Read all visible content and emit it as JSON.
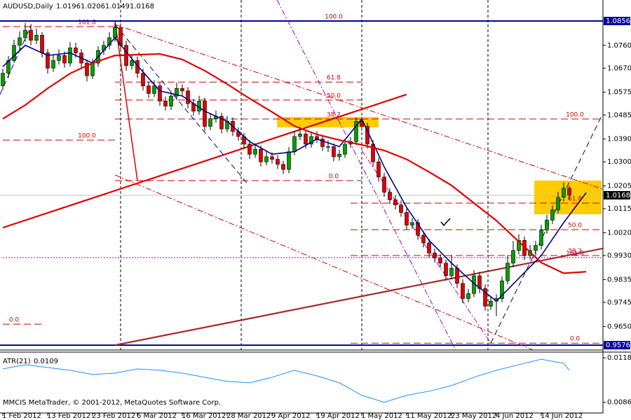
{
  "chart_data": {
    "type": "candlestick",
    "title": "AUDUSD,Daily",
    "footer": "MMCIS MetaTrader, © 2001-2012, MetaQuotes Software Corp.",
    "bull_color": "#00a000",
    "bear_color": "#e00000",
    "ylim": [
      0.9557,
      1.0939
    ],
    "yticks": [
      {
        "value": 1.076,
        "label": "1.0760"
      },
      {
        "value": 1.067,
        "label": "1.0670"
      },
      1.0575,
      1.0485,
      {
        "value": 1.039,
        "label": "1.0390"
      },
      {
        "value": 1.03,
        "label": "1.0300"
      },
      1.0205,
      1.0115,
      {
        "value": 1.002,
        "label": "1.0020"
      },
      {
        "value": 0.993,
        "label": "0.9930"
      },
      0.9835,
      0.9745,
      {
        "value": 0.965,
        "label": "0.9650"
      }
    ],
    "xticks": [
      {
        "value": 0,
        "label": "1 Feb 2012"
      },
      {
        "value": 8,
        "label": "13 Feb 2012"
      },
      {
        "value": 16,
        "label": "23 Feb 2012"
      },
      {
        "value": 24,
        "label": "6 Mar 2012"
      },
      {
        "value": 32,
        "label": "16 Mar 2012"
      },
      {
        "value": 40,
        "label": "28 Mar 2012"
      },
      {
        "value": 48,
        "label": "9 Apr 2012"
      },
      {
        "value": 56,
        "label": "19 Apr 2012"
      },
      {
        "value": 64,
        "label": "1 May 2012"
      },
      {
        "value": 72,
        "label": "11 May 2012"
      },
      {
        "value": 80,
        "label": "23 May 2012"
      },
      {
        "value": 88,
        "label": "4 Jun 2012"
      },
      {
        "value": 96,
        "label": "14 Jun 2012"
      }
    ],
    "grid": false,
    "ohlc": [
      [
        1.06,
        1.0668,
        1.0585,
        1.065
      ],
      [
        1.065,
        1.0718,
        1.0632,
        1.07
      ],
      [
        1.07,
        1.0782,
        1.069,
        1.076
      ],
      [
        1.076,
        1.0815,
        1.0741,
        1.079
      ],
      [
        1.079,
        1.0848,
        1.0775,
        1.082
      ],
      [
        1.082,
        1.0842,
        1.076,
        1.078
      ],
      [
        1.078,
        1.0826,
        1.0765,
        1.08
      ],
      [
        1.08,
        1.0812,
        1.0712,
        1.073
      ],
      [
        1.073,
        1.0745,
        1.0648,
        1.067
      ],
      [
        1.067,
        1.0721,
        1.0655,
        1.07
      ],
      [
        1.07,
        1.0744,
        1.0684,
        1.072
      ],
      [
        1.072,
        1.0736,
        1.0672,
        1.069
      ],
      [
        1.069,
        1.0772,
        1.0677,
        1.075
      ],
      [
        1.075,
        1.077,
        1.0711,
        1.073
      ],
      [
        1.073,
        1.0745,
        1.0672,
        1.069
      ],
      [
        1.069,
        1.0703,
        1.0618,
        1.064
      ],
      [
        1.064,
        1.0708,
        1.0627,
        1.069
      ],
      [
        1.069,
        1.0757,
        1.0676,
        1.074
      ],
      [
        1.074,
        1.0778,
        1.0722,
        1.076
      ],
      [
        1.076,
        1.0812,
        1.0745,
        1.079
      ],
      [
        1.079,
        1.0856,
        1.0774,
        1.083
      ],
      [
        1.083,
        1.0846,
        1.0741,
        1.076
      ],
      [
        1.076,
        1.0778,
        1.066,
        1.068
      ],
      [
        1.068,
        1.0722,
        1.0664,
        1.07
      ],
      [
        1.07,
        1.0716,
        1.0631,
        1.065
      ],
      [
        1.065,
        1.0668,
        1.0582,
        1.06
      ],
      [
        1.06,
        1.0617,
        1.0552,
        1.057
      ],
      [
        1.057,
        1.0622,
        1.0556,
        1.06
      ],
      [
        1.06,
        1.0614,
        1.0521,
        1.054
      ],
      [
        1.054,
        1.0558,
        1.0503,
        1.052
      ],
      [
        1.052,
        1.0578,
        1.0505,
        1.056
      ],
      [
        1.056,
        1.0612,
        1.0544,
        1.059
      ],
      [
        1.059,
        1.0606,
        1.0562,
        1.058
      ],
      [
        1.058,
        1.0595,
        1.0511,
        1.053
      ],
      [
        1.053,
        1.0547,
        1.0482,
        1.05
      ],
      [
        1.05,
        1.0561,
        1.0486,
        1.054
      ],
      [
        1.054,
        1.0553,
        1.0421,
        1.044
      ],
      [
        1.044,
        1.0492,
        1.0425,
        1.047
      ],
      [
        1.047,
        1.0502,
        1.0455,
        1.048
      ],
      [
        1.048,
        1.0494,
        1.0412,
        1.043
      ],
      [
        1.043,
        1.0481,
        1.0416,
        1.046
      ],
      [
        1.046,
        1.0475,
        1.0402,
        1.042
      ],
      [
        1.042,
        1.0436,
        1.0383,
        1.04
      ],
      [
        1.04,
        1.0414,
        1.0352,
        1.037
      ],
      [
        1.037,
        1.0386,
        1.0311,
        1.033
      ],
      [
        1.033,
        1.0372,
        1.0316,
        1.035
      ],
      [
        1.035,
        1.0364,
        1.0282,
        1.03
      ],
      [
        1.03,
        1.0341,
        1.0286,
        1.032
      ],
      [
        1.032,
        1.0338,
        1.0293,
        1.031
      ],
      [
        1.031,
        1.0326,
        1.0272,
        1.029
      ],
      [
        1.029,
        1.0304,
        1.0252,
        1.027
      ],
      [
        1.027,
        1.0358,
        1.0255,
        1.034
      ],
      [
        1.034,
        1.0422,
        1.0326,
        1.04
      ],
      [
        1.04,
        1.0438,
        1.0385,
        1.041
      ],
      [
        1.041,
        1.0425,
        1.0352,
        1.037
      ],
      [
        1.037,
        1.0418,
        1.0356,
        1.04
      ],
      [
        1.04,
        1.0421,
        1.0374,
        1.039
      ],
      [
        1.039,
        1.0405,
        1.0343,
        1.036
      ],
      [
        1.036,
        1.0384,
        1.0339,
        1.036
      ],
      [
        1.036,
        1.0372,
        1.0302,
        1.032
      ],
      [
        1.032,
        1.0348,
        1.0305,
        1.033
      ],
      [
        1.033,
        1.0391,
        1.0316,
        1.037
      ],
      [
        1.037,
        1.0398,
        1.0356,
        1.038
      ],
      [
        1.038,
        1.0475,
        1.0366,
        1.046
      ],
      [
        1.046,
        1.0476,
        1.0423,
        1.044
      ],
      [
        1.044,
        1.0455,
        1.0352,
        1.037
      ],
      [
        1.037,
        1.0386,
        1.0281,
        1.03
      ],
      [
        1.03,
        1.0316,
        1.0222,
        1.024
      ],
      [
        1.024,
        1.0257,
        1.0162,
        1.018
      ],
      [
        1.018,
        1.0196,
        1.0133,
        1.015
      ],
      [
        1.015,
        1.0168,
        1.0112,
        1.013
      ],
      [
        1.013,
        1.0147,
        1.0083,
        1.01
      ],
      [
        1.01,
        1.0116,
        1.0032,
        1.005
      ],
      [
        1.005,
        1.0078,
        1.0036,
        1.006
      ],
      [
        1.006,
        1.0074,
        0.9992,
        1.001
      ],
      [
        1.001,
        1.0027,
        0.9962,
        0.998
      ],
      [
        0.998,
        0.9996,
        0.9921,
        0.994
      ],
      [
        0.994,
        0.9957,
        0.9903,
        0.992
      ],
      [
        0.992,
        0.9936,
        0.9882,
        0.99
      ],
      [
        0.99,
        0.9914,
        0.9831,
        0.985
      ],
      [
        0.985,
        0.9932,
        0.9836,
        0.988
      ],
      [
        0.988,
        0.9895,
        0.9802,
        0.982
      ],
      [
        0.982,
        0.9836,
        0.9742,
        0.976
      ],
      [
        0.976,
        0.9798,
        0.9745,
        0.978
      ],
      [
        0.978,
        0.9872,
        0.9766,
        0.985
      ],
      [
        0.985,
        0.9865,
        0.9782,
        0.98
      ],
      [
        0.98,
        0.9816,
        0.9712,
        0.973
      ],
      [
        0.973,
        0.9768,
        0.9715,
        0.975
      ],
      [
        0.975,
        0.9777,
        0.9691,
        0.976
      ],
      [
        0.976,
        0.9848,
        0.9745,
        0.983
      ],
      [
        0.983,
        0.9932,
        0.9816,
        0.99
      ],
      [
        0.99,
        0.9988,
        0.9884,
        0.995
      ],
      [
        0.995,
        1.0014,
        0.9935,
        0.999
      ],
      [
        0.999,
        1.0005,
        0.9912,
        0.993
      ],
      [
        0.993,
        0.9972,
        0.9915,
        0.995
      ],
      [
        0.995,
        0.9988,
        0.9933,
        0.997
      ],
      [
        0.997,
        1.0052,
        0.9954,
        1.003
      ],
      [
        1.003,
        1.0091,
        1.0016,
        1.007
      ],
      [
        1.007,
        1.0128,
        1.0055,
        1.011
      ],
      [
        1.011,
        1.0182,
        1.0096,
        1.016
      ],
      [
        1.016,
        1.0218,
        1.0144,
        1.0196
      ],
      [
        1.0196,
        1.0206,
        1.0149,
        1.0168
      ]
    ],
    "ma": [
      {
        "color": "#000080",
        "width": 1.6,
        "x": [
          0,
          4,
          8,
          12,
          16,
          20,
          24,
          28,
          32,
          36,
          40,
          44,
          48,
          52,
          56,
          60,
          64,
          68,
          72,
          76,
          80,
          84,
          88,
          92,
          96,
          100,
          104
        ],
        "values": [
          1.0676,
          1.076,
          1.072,
          1.073,
          1.069,
          1.079,
          1.068,
          1.058,
          1.056,
          1.05,
          1.046,
          1.038,
          1.033,
          1.034,
          1.039,
          1.036,
          1.0469,
          1.028,
          1.012,
          0.999,
          0.99,
          0.982,
          0.975,
          0.984,
          0.993,
          1.006,
          1.0178
        ]
      },
      {
        "color": "#e00000",
        "width": 2.2,
        "x": [
          0,
          4,
          8,
          12,
          16,
          20,
          24,
          28,
          32,
          36,
          40,
          44,
          48,
          52,
          56,
          60,
          64,
          68,
          72,
          76,
          80,
          84,
          88,
          92,
          96,
          100,
          104
        ],
        "values": [
          1.047,
          1.0524,
          1.059,
          1.0649,
          1.069,
          1.072,
          1.0723,
          1.0726,
          1.0704,
          1.066,
          1.0607,
          1.055,
          1.0497,
          1.0441,
          1.0408,
          1.0386,
          1.0367,
          1.0345,
          1.031,
          1.026,
          1.0207,
          1.0137,
          1.0068,
          0.9985,
          0.9902,
          0.986,
          0.9866
        ]
      }
    ],
    "hlines": [
      {
        "price": 1.0856,
        "color": "#0000a0"
      },
      {
        "price": 0.9576,
        "color": "#0000a0"
      }
    ],
    "vlines": [
      21,
      42.5,
      64,
      86.5
    ],
    "boxes": [
      {
        "from": 48.9,
        "to": 67,
        "top": 1.0477,
        "bottom": 1.0436,
        "color": "#ffcc00"
      },
      {
        "from": 94.75,
        "to": 106.75,
        "top": 1.0226,
        "bottom": 1.0093,
        "color": "#ffcc00"
      }
    ],
    "fibs": [
      {
        "label": "161.8",
        "price": 1.0834,
        "from": 0,
        "to": 20,
        "color": "#d00000"
      },
      {
        "label": "100.0",
        "price": 1.0856,
        "from": 20,
        "to": 64,
        "color": "#d00000"
      },
      {
        "label": "61.8",
        "price": 1.0615,
        "from": 20,
        "to": 64,
        "color": "#d00000"
      },
      {
        "label": "50.0",
        "price": 1.0544,
        "from": 20,
        "to": 64,
        "color": "#d00000"
      },
      {
        "label": "38.2",
        "price": 1.0469,
        "from": 20,
        "to": 64,
        "color": "#d00000"
      },
      {
        "label": "0.0",
        "price": 1.0226,
        "from": 20,
        "to": 64,
        "color": "#d00000"
      },
      {
        "label": "100.0",
        "price": 1.0386,
        "from": 0,
        "to": 20,
        "color": "#d00000"
      },
      {
        "label": "0.0",
        "price": 0.9659,
        "from": 0,
        "to": 7,
        "color": "#d00000"
      },
      {
        "label": "161.8",
        "price": 0.9922,
        "from": 0,
        "to": 107,
        "color": "#a000a0"
      },
      {
        "label": "100.0",
        "price": 1.0469,
        "from": 62,
        "to": 107,
        "color": "#d00000"
      },
      {
        "label": "61.8",
        "price": 1.0137,
        "from": 62,
        "to": 107,
        "color": "#d00000"
      },
      {
        "label": "50.0",
        "price": 1.0032,
        "from": 62,
        "to": 107,
        "color": "#d00000"
      },
      {
        "label": "38.2",
        "price": 0.993,
        "from": 62,
        "to": 107,
        "color": "#d00000"
      },
      {
        "label": "0.0",
        "price": 0.9584,
        "from": 62,
        "to": 107,
        "color": "#d00000"
      }
    ],
    "lines": [
      {
        "from": [
          0,
          1.004
        ],
        "to": [
          72,
          1.0566
        ],
        "color": "#e00000",
        "width": 2.2,
        "style": "solid"
      },
      {
        "from": [
          20,
          0.9576
        ],
        "to": [
          107,
          0.9958
        ],
        "color": "#a52a2a",
        "width": 2.2,
        "style": "solid"
      },
      {
        "from": [
          20,
          1.0856
        ],
        "to": [
          24,
          1.0226
        ],
        "color": "#e00000",
        "width": 1.5,
        "style": "solid"
      },
      {
        "from": [
          20,
          1.0842
        ],
        "to": [
          43.9,
          1.0206
        ],
        "color": "#000080",
        "width": 1,
        "style": "dash"
      },
      {
        "from": [
          87,
          0.9584
        ],
        "to": [
          106.8,
          1.0483
        ],
        "color": "#000080",
        "width": 1,
        "style": "dash"
      },
      {
        "from": [
          -0.5,
          1.0566
        ],
        "to": [
          5.1,
          1.0842
        ],
        "color": "#000080",
        "width": 1,
        "style": "dash"
      },
      {
        "from": [
          48.9,
          1.0939
        ],
        "to": [
          80.75,
          0.9557
        ],
        "color": "#a000c0",
        "width": 1,
        "style": "dashdot"
      },
      {
        "from": [
          20,
          1.0842
        ],
        "to": [
          107,
          1.0192
        ],
        "color": "#d00000",
        "width": 1,
        "style": "dashdot"
      },
      {
        "from": [
          20,
          1.0248
        ],
        "to": [
          94.5,
          0.9557
        ],
        "color": "#d00000",
        "width": 1,
        "style": "dashdot"
      },
      {
        "from": [
          64,
          1.0345
        ],
        "to": [
          87,
          0.9584
        ],
        "color": "#c000c0",
        "width": 1,
        "style": "dashdot"
      }
    ],
    "indicator": {
      "label": "ATR(21)",
      "color": "#1e90ff",
      "ylim": [
        0.00783,
        0.01221
      ],
      "yticks": [
        0.0118,
        0.0086
      ],
      "x": [
        0,
        4,
        8,
        12,
        16,
        20,
        24,
        28,
        32,
        36,
        40,
        44,
        48,
        52,
        56,
        60,
        64,
        68,
        72,
        76,
        80,
        84,
        88,
        92,
        96,
        100,
        101
      ],
      "values": [
        0.011,
        0.0113,
        0.0111,
        0.0109,
        0.0106,
        0.0107,
        0.011,
        0.0109,
        0.0107,
        0.0104,
        0.0101,
        0.01,
        0.0104,
        0.0109,
        0.0105,
        0.01,
        0.0091,
        0.0086,
        0.0091,
        0.0094,
        0.0098,
        0.0104,
        0.0109,
        0.0113,
        0.0117,
        0.0114,
        0.0109
      ]
    }
  }
}
